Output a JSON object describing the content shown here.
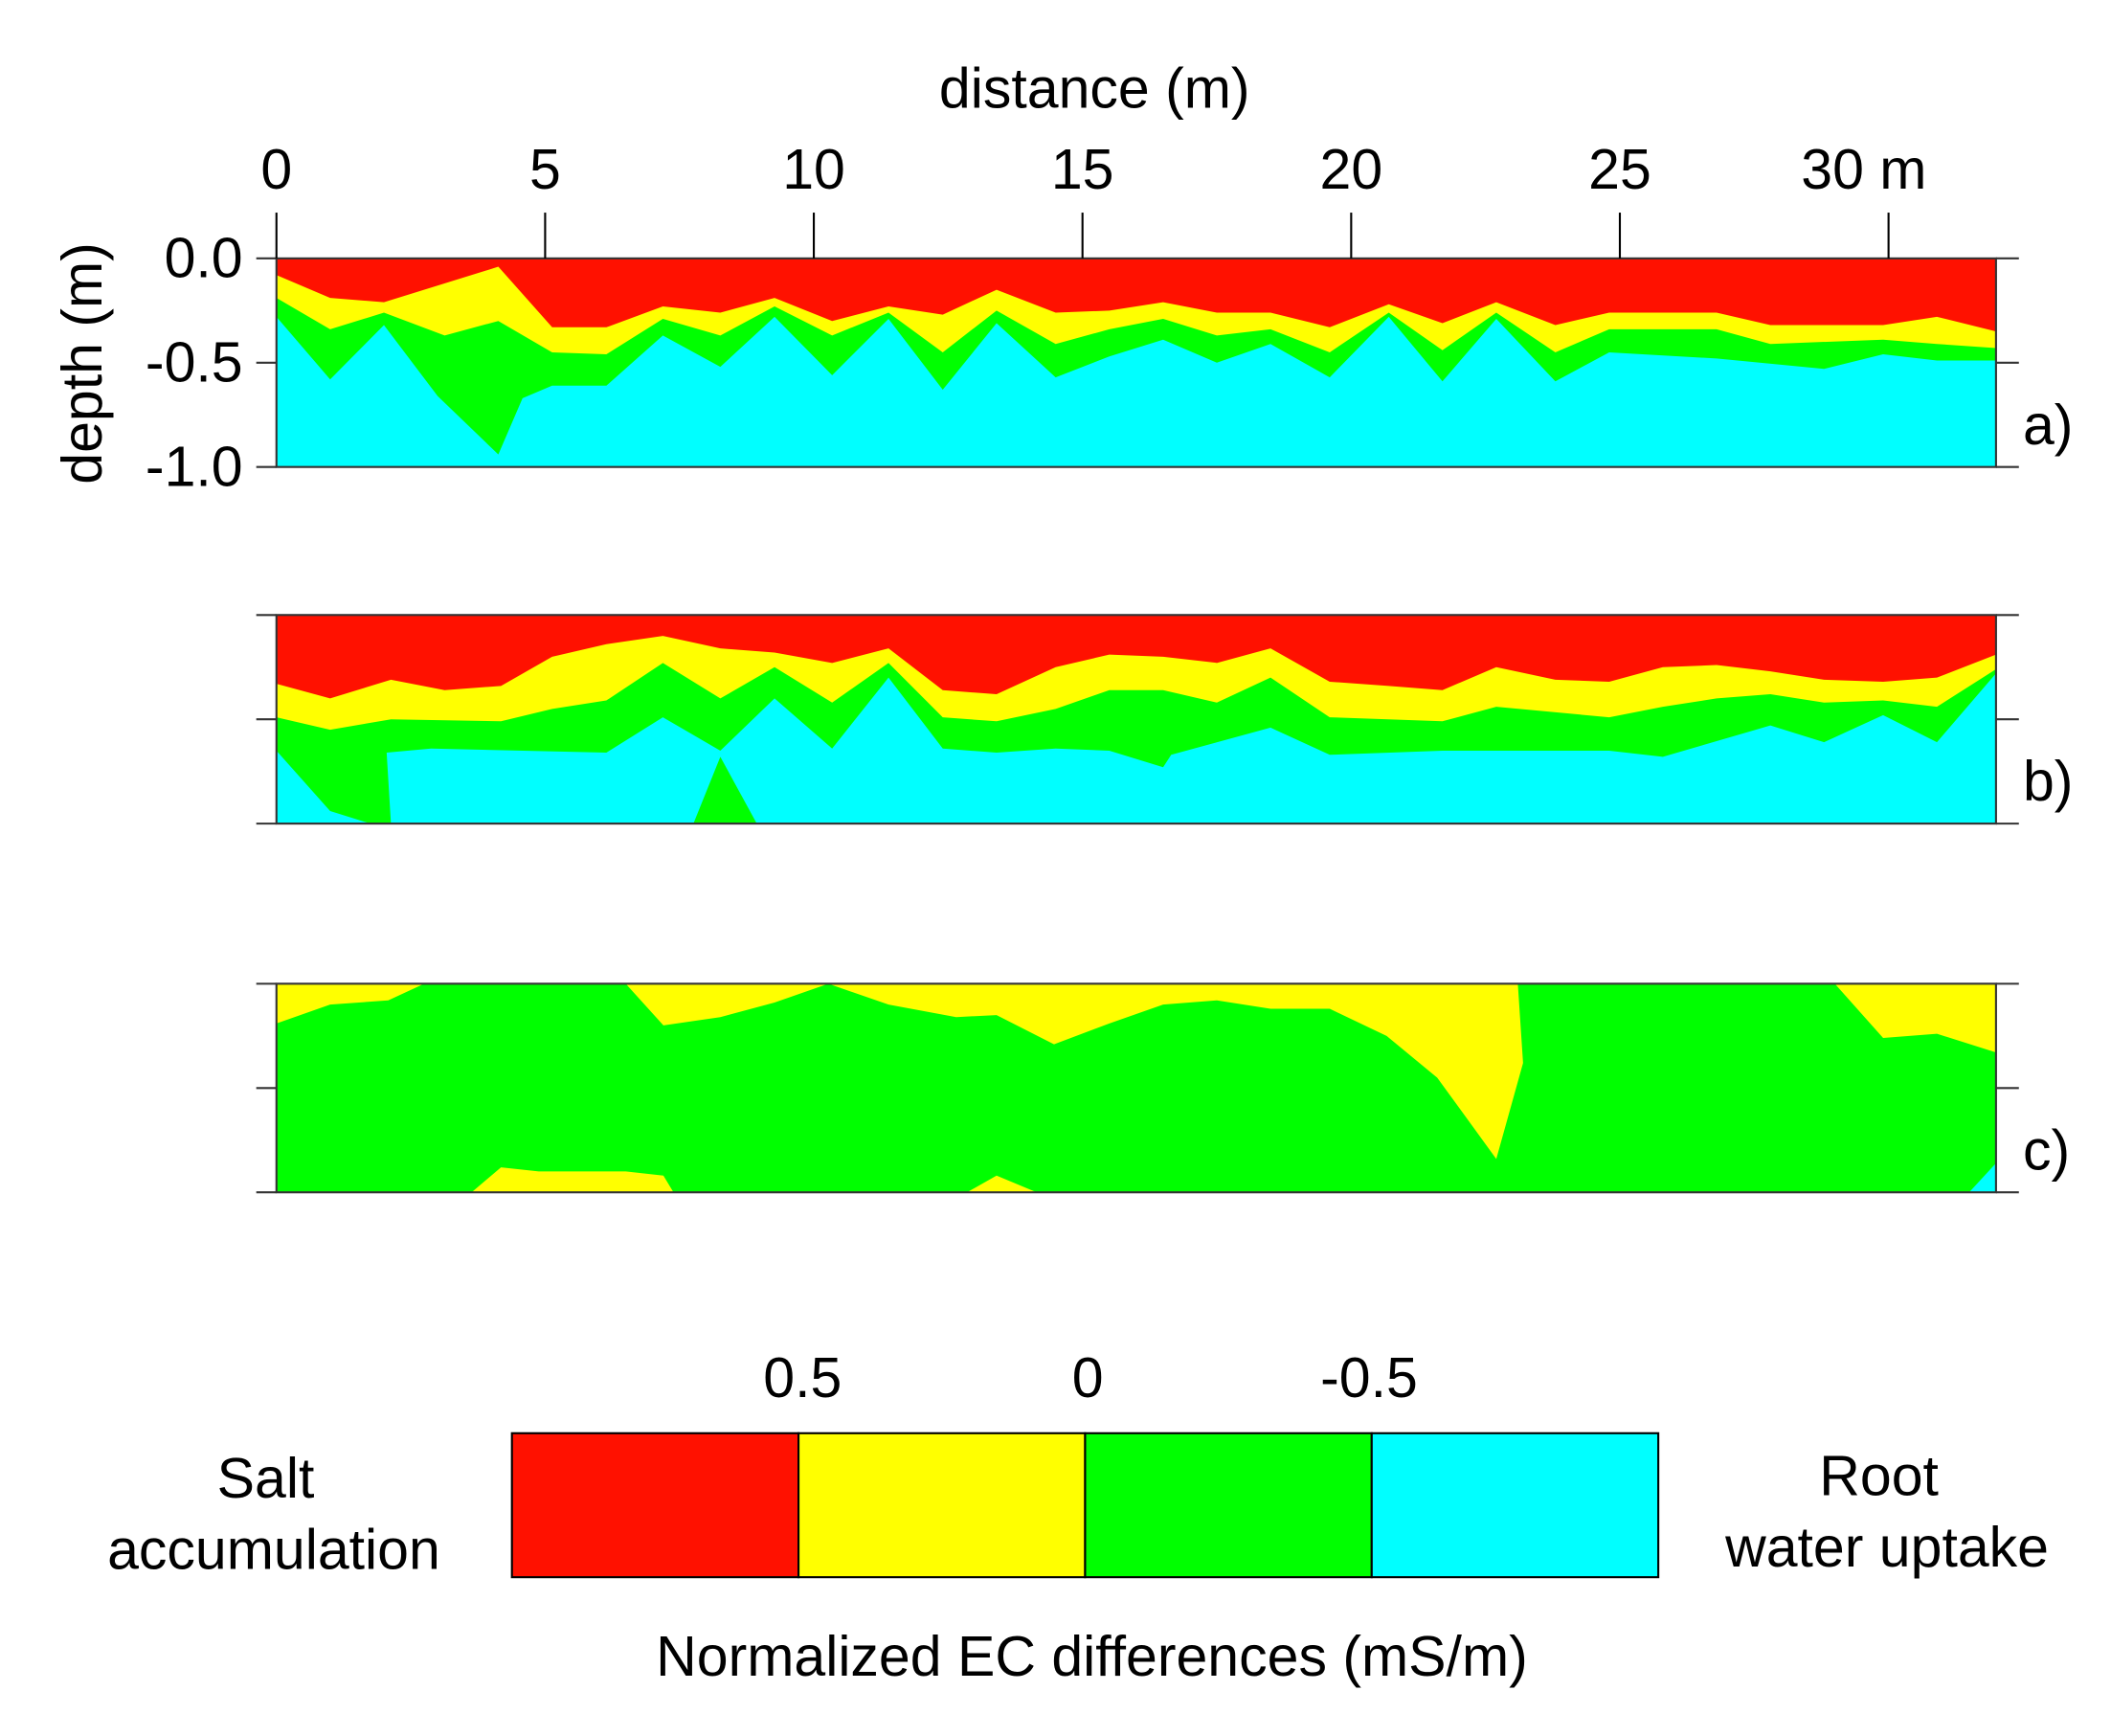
{
  "chart_data": {
    "type": "heatmap",
    "xlabel": "distance (m)",
    "ylabel": "depth (m)",
    "xlim": [
      0,
      32
    ],
    "ylim": [
      -1.0,
      0.0
    ],
    "x_ticks": [
      0,
      5,
      10,
      15,
      20,
      25,
      30
    ],
    "x_tick_labels": [
      "0",
      "5",
      "10",
      "15",
      "20",
      "25",
      "30 m"
    ],
    "y_ticks": [
      0.0,
      -0.5,
      -1.0
    ],
    "y_tick_labels": [
      "0.0",
      "-0.5",
      "-1.0"
    ],
    "colors": {
      "above_0.5": "#FF1100",
      "0_to_0.5": "#FFFF00",
      "-0.5_to_0": "#00FF00",
      "below_-0.5": "#00FFFF"
    },
    "panels": [
      {
        "label": "a)",
        "boundaries": {
          "red_yellow": [
            [
              0,
              -0.08
            ],
            [
              1,
              -0.19
            ],
            [
              2,
              -0.21
            ],
            [
              4.13,
              -0.04
            ],
            [
              5.13,
              -0.33
            ],
            [
              6.14,
              -0.33
            ],
            [
              7.19,
              -0.23
            ],
            [
              8.26,
              -0.26
            ],
            [
              9.27,
              -0.19
            ],
            [
              10.34,
              -0.3
            ],
            [
              11.39,
              -0.23
            ],
            [
              12.4,
              -0.27
            ],
            [
              13.4,
              -0.15
            ],
            [
              14.5,
              -0.26
            ],
            [
              15.5,
              -0.25
            ],
            [
              16.5,
              -0.21
            ],
            [
              17.5,
              -0.26
            ],
            [
              18.5,
              -0.26
            ],
            [
              19.6,
              -0.33
            ],
            [
              20.7,
              -0.22
            ],
            [
              21.7,
              -0.31
            ],
            [
              22.7,
              -0.21
            ],
            [
              23.8,
              -0.32
            ],
            [
              24.8,
              -0.26
            ],
            [
              26.8,
              -0.26
            ],
            [
              27.8,
              -0.32
            ],
            [
              29.9,
              -0.32
            ],
            [
              30.9,
              -0.28
            ],
            [
              32,
              -0.35
            ]
          ],
          "yellow_green": [
            [
              0,
              -0.19
            ],
            [
              1,
              -0.34
            ],
            [
              2,
              -0.26
            ],
            [
              3.13,
              -0.37
            ],
            [
              4.13,
              -0.3
            ],
            [
              5.13,
              -0.45
            ],
            [
              6.14,
              -0.46
            ],
            [
              7.19,
              -0.29
            ],
            [
              8.26,
              -0.37
            ],
            [
              9.27,
              -0.23
            ],
            [
              10.34,
              -0.37
            ],
            [
              11.39,
              -0.26
            ],
            [
              12.4,
              -0.45
            ],
            [
              13.4,
              -0.25
            ],
            [
              14.5,
              -0.41
            ],
            [
              15.5,
              -0.34
            ],
            [
              16.5,
              -0.29
            ],
            [
              17.5,
              -0.37
            ],
            [
              18.5,
              -0.34
            ],
            [
              19.6,
              -0.45
            ],
            [
              20.7,
              -0.26
            ],
            [
              21.7,
              -0.44
            ],
            [
              22.7,
              -0.26
            ],
            [
              23.8,
              -0.45
            ],
            [
              24.8,
              -0.34
            ],
            [
              26.8,
              -0.34
            ],
            [
              27.8,
              -0.41
            ],
            [
              29.9,
              -0.39
            ],
            [
              30.9,
              -0.41
            ],
            [
              32,
              -0.43
            ]
          ],
          "green_cyan": [
            [
              0,
              -0.28
            ],
            [
              1,
              -0.58
            ],
            [
              2,
              -0.32
            ],
            [
              3,
              -0.66
            ],
            [
              4.13,
              -0.94
            ],
            [
              4.58,
              -0.67
            ],
            [
              5.13,
              -0.61
            ],
            [
              6.14,
              -0.61
            ],
            [
              7.19,
              -0.37
            ],
            [
              8.26,
              -0.52
            ],
            [
              9.27,
              -0.28
            ],
            [
              10.34,
              -0.56
            ],
            [
              11.39,
              -0.29
            ],
            [
              12.4,
              -0.63
            ],
            [
              13.4,
              -0.31
            ],
            [
              14.5,
              -0.57
            ],
            [
              15.5,
              -0.47
            ],
            [
              16.5,
              -0.39
            ],
            [
              17.5,
              -0.5
            ],
            [
              18.5,
              -0.41
            ],
            [
              19.6,
              -0.57
            ],
            [
              20.7,
              -0.28
            ],
            [
              21.7,
              -0.59
            ],
            [
              22.7,
              -0.29
            ],
            [
              23.8,
              -0.59
            ],
            [
              24.8,
              -0.45
            ],
            [
              26.8,
              -0.48
            ],
            [
              28.8,
              -0.53
            ],
            [
              29.9,
              -0.46
            ],
            [
              30.9,
              -0.49
            ],
            [
              32,
              -0.49
            ]
          ]
        },
        "patches": []
      },
      {
        "label": "b)",
        "boundaries": {
          "red_yellow": [
            [
              0,
              -0.33
            ],
            [
              1,
              -0.4
            ],
            [
              2.13,
              -0.31
            ],
            [
              3.13,
              -0.36
            ],
            [
              4.18,
              -0.34
            ],
            [
              5.13,
              -0.2
            ],
            [
              6.14,
              -0.14
            ],
            [
              7.19,
              -0.1
            ],
            [
              8.26,
              -0.16
            ],
            [
              9.27,
              -0.18
            ],
            [
              10.34,
              -0.23
            ],
            [
              11.39,
              -0.16
            ],
            [
              12.4,
              -0.36
            ],
            [
              13.4,
              -0.38
            ],
            [
              14.5,
              -0.25
            ],
            [
              15.5,
              -0.19
            ],
            [
              16.5,
              -0.2
            ],
            [
              17.5,
              -0.23
            ],
            [
              18.5,
              -0.16
            ],
            [
              19.6,
              -0.32
            ],
            [
              20.7,
              -0.34
            ],
            [
              21.7,
              -0.36
            ],
            [
              22.7,
              -0.25
            ],
            [
              23.8,
              -0.31
            ],
            [
              24.8,
              -0.32
            ],
            [
              25.8,
              -0.25
            ],
            [
              26.8,
              -0.24
            ],
            [
              27.8,
              -0.27
            ],
            [
              28.8,
              -0.31
            ],
            [
              29.9,
              -0.32
            ],
            [
              30.9,
              -0.3
            ],
            [
              32,
              -0.19
            ]
          ],
          "yellow_green": [
            [
              0,
              -0.49
            ],
            [
              1,
              -0.55
            ],
            [
              2.13,
              -0.5
            ],
            [
              4.18,
              -0.51
            ],
            [
              5.13,
              -0.45
            ],
            [
              6.14,
              -0.41
            ],
            [
              7.19,
              -0.23
            ],
            [
              8.26,
              -0.4
            ],
            [
              9.27,
              -0.25
            ],
            [
              10.34,
              -0.42
            ],
            [
              11.39,
              -0.23
            ],
            [
              12.4,
              -0.49
            ],
            [
              13.4,
              -0.51
            ],
            [
              14.5,
              -0.45
            ],
            [
              15.5,
              -0.36
            ],
            [
              16.5,
              -0.36
            ],
            [
              17.5,
              -0.42
            ],
            [
              18.5,
              -0.3
            ],
            [
              19.6,
              -0.49
            ],
            [
              21.7,
              -0.51
            ],
            [
              22.7,
              -0.44
            ],
            [
              24.8,
              -0.49
            ],
            [
              25.8,
              -0.44
            ],
            [
              26.8,
              -0.4
            ],
            [
              27.8,
              -0.38
            ],
            [
              28.8,
              -0.42
            ],
            [
              29.9,
              -0.41
            ],
            [
              30.9,
              -0.44
            ],
            [
              32,
              -0.26
            ]
          ],
          "green_cyan": [
            [
              0,
              -0.65
            ],
            [
              1,
              -0.94
            ],
            [
              1.75,
              -1.0
            ],
            [
              2.13,
              -1.0
            ],
            [
              2.05,
              -0.66
            ],
            [
              2.88,
              -0.64
            ],
            [
              6.14,
              -0.66
            ],
            [
              7.19,
              -0.49
            ],
            [
              8.26,
              -0.65
            ],
            [
              9.27,
              -0.4
            ],
            [
              10.34,
              -0.64
            ],
            [
              11.39,
              -0.3
            ],
            [
              12.4,
              -0.64
            ],
            [
              13.4,
              -0.66
            ],
            [
              14.5,
              -0.64
            ],
            [
              15.5,
              -0.65
            ],
            [
              16.5,
              -0.73
            ],
            [
              16.65,
              -0.67
            ],
            [
              18.5,
              -0.54
            ],
            [
              19.6,
              -0.67
            ],
            [
              21.7,
              -0.65
            ],
            [
              24.8,
              -0.65
            ],
            [
              25.8,
              -0.68
            ],
            [
              27.8,
              -0.53
            ],
            [
              28.8,
              -0.61
            ],
            [
              29.9,
              -0.48
            ],
            [
              30.9,
              -0.61
            ],
            [
              32,
              -0.28
            ]
          ]
        },
        "patches": [
          {
            "class": "-0.5_to_0",
            "points": [
              [
                7.76,
                -1.0
              ],
              [
                8.26,
                -0.68
              ],
              [
                8.94,
                -1.0
              ]
            ]
          }
        ]
      },
      {
        "label": "c)",
        "boundaries": {
          "red_yellow": [],
          "yellow_green": [
            [
              0,
              -0.19
            ],
            [
              1,
              -0.1
            ],
            [
              2.08,
              -0.08
            ],
            [
              2.75,
              0
            ],
            [
              6.5,
              0
            ],
            [
              7.2,
              -0.2
            ],
            [
              8.26,
              -0.16
            ],
            [
              9.27,
              -0.09
            ],
            [
              10.27,
              0
            ],
            [
              11.39,
              -0.1
            ],
            [
              12.65,
              -0.16
            ],
            [
              13.4,
              -0.15
            ],
            [
              14.47,
              -0.29
            ],
            [
              15.5,
              -0.19
            ],
            [
              16.5,
              -0.1
            ],
            [
              17.5,
              -0.08
            ],
            [
              18.5,
              -0.12
            ],
            [
              19.6,
              -0.12
            ],
            [
              20.66,
              -0.25
            ],
            [
              21.6,
              -0.45
            ],
            [
              22.7,
              -0.84
            ],
            [
              23.2,
              -0.38
            ],
            [
              23.1,
              0
            ],
            [
              29,
              0
            ],
            [
              29.9,
              -0.26
            ],
            [
              30.9,
              -0.24
            ],
            [
              32,
              -0.33
            ]
          ],
          "green_cyan": []
        },
        "patches": [
          {
            "class": "0_to_0.5",
            "points": [
              [
                3.63,
                -1.0
              ],
              [
                4.18,
                -0.88
              ],
              [
                4.88,
                -0.9
              ],
              [
                6.5,
                -0.9
              ],
              [
                7.2,
                -0.92
              ],
              [
                7.39,
                -1.0
              ]
            ]
          },
          {
            "class": "0_to_0.5",
            "points": [
              [
                12.85,
                -1.0
              ],
              [
                13.4,
                -0.92
              ],
              [
                14.15,
                -1.0
              ]
            ]
          },
          {
            "class": "below_-0.5",
            "points": [
              [
                31.5,
                -1.0
              ],
              [
                32,
                -0.86
              ],
              [
                32,
                -1.0
              ]
            ]
          }
        ]
      }
    ],
    "colorbar": {
      "tick_labels": [
        "0.5",
        "0",
        "-0.5"
      ],
      "left_label": [
        "Salt",
        "accumulation"
      ],
      "right_label": [
        "Root",
        "water uptake"
      ],
      "title": "Normalized EC differences (mS/m)"
    }
  }
}
